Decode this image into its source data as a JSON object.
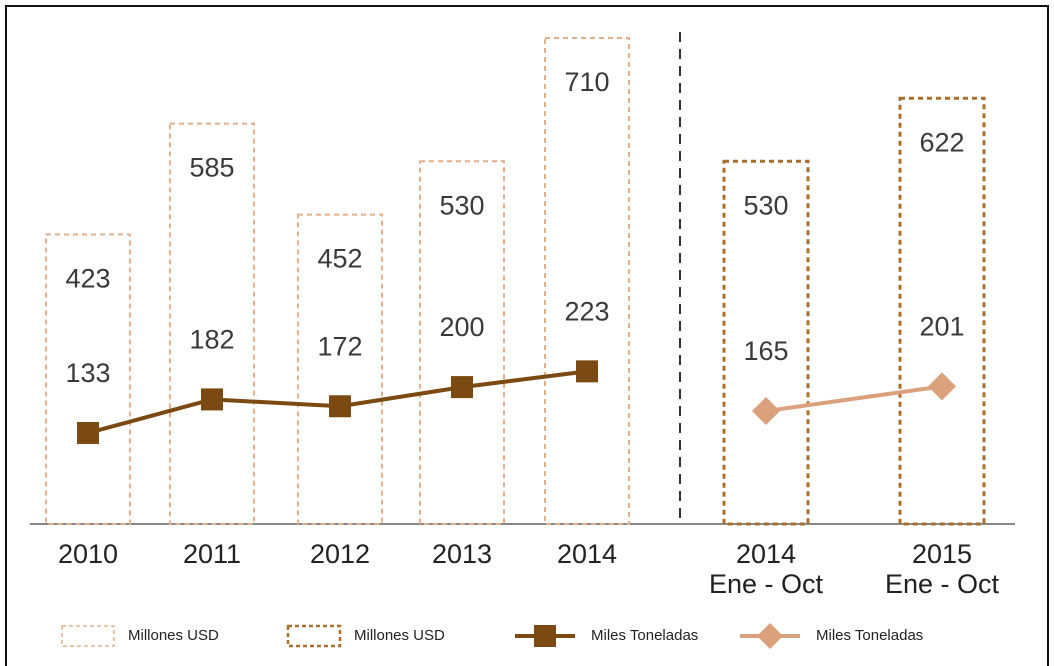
{
  "chart_data": {
    "type": "bar",
    "categories": [
      "2010",
      "2011",
      "2012",
      "2013",
      "2014",
      [
        "2014",
        "Ene - Oct"
      ],
      [
        "2015",
        "Ene - Oct"
      ]
    ],
    "series": [
      {
        "name": "Millones USD",
        "kind": "bar",
        "color": "#e2b08c",
        "values": [
          423,
          585,
          452,
          530,
          710,
          null,
          null
        ]
      },
      {
        "name": "Millones USD",
        "kind": "bar",
        "color": "#a8702e",
        "values": [
          null,
          null,
          null,
          null,
          null,
          530,
          622
        ]
      },
      {
        "name": "Miles Toneladas",
        "kind": "line",
        "marker": "square",
        "color": "#7a4a12",
        "values": [
          133,
          182,
          172,
          200,
          223,
          null,
          null
        ]
      },
      {
        "name": "Miles Toneladas",
        "kind": "line",
        "marker": "diamond",
        "color": "#dba07c",
        "values": [
          null,
          null,
          null,
          null,
          null,
          165,
          201
        ]
      }
    ]
  }
}
